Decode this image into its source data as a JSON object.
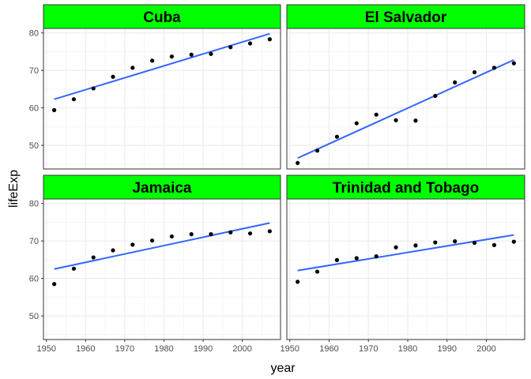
{
  "chart_data": {
    "type": "scatter",
    "xlabel": "year",
    "ylabel": "lifeExp",
    "xlim": [
      1949.25,
      2009.75
    ],
    "ylim": [
      43.7,
      81.2
    ],
    "x_ticks": [
      1950,
      1960,
      1970,
      1980,
      1990,
      2000
    ],
    "y_ticks": [
      50,
      60,
      70,
      80
    ],
    "grid": true,
    "strip_color": "#00ff00",
    "point_color": "#000000",
    "line_color": "#3366ff",
    "years": [
      1952,
      1957,
      1962,
      1967,
      1972,
      1977,
      1982,
      1987,
      1992,
      1997,
      2002,
      2007
    ],
    "panels": [
      {
        "name": "Cuba",
        "lifeExp": [
          59.4,
          62.3,
          65.2,
          68.3,
          70.7,
          72.6,
          73.7,
          74.2,
          74.4,
          76.2,
          77.2,
          78.3
        ],
        "trend": [
          62.3,
          79.8
        ]
      },
      {
        "name": "El Salvador",
        "lifeExp": [
          45.3,
          48.6,
          52.3,
          55.9,
          58.2,
          56.7,
          56.6,
          63.2,
          66.8,
          69.5,
          70.7,
          71.9
        ],
        "trend": [
          46.6,
          72.8
        ]
      },
      {
        "name": "Jamaica",
        "lifeExp": [
          58.5,
          62.6,
          65.6,
          67.5,
          69.0,
          70.1,
          71.2,
          71.8,
          71.8,
          72.3,
          72.0,
          72.6
        ],
        "trend": [
          62.5,
          74.8
        ]
      },
      {
        "name": "Trinidad and Tobago",
        "lifeExp": [
          59.1,
          61.8,
          64.9,
          65.4,
          65.9,
          68.3,
          68.8,
          69.6,
          69.9,
          69.5,
          68.9,
          69.8
        ],
        "trend": [
          62.1,
          71.6
        ]
      }
    ]
  }
}
